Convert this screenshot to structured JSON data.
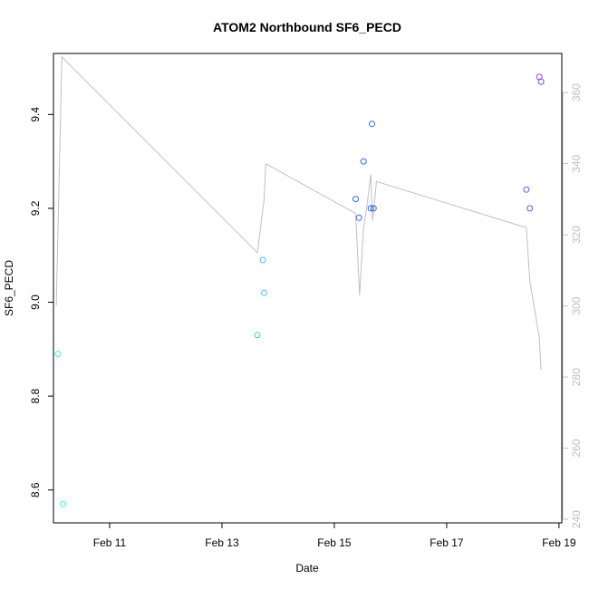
{
  "chart_data": {
    "type": "scatter",
    "title": "ATOM2 Northbound SF6_PECD",
    "xlabel": "Date",
    "ylabel": "SF6_PECD",
    "x_ticks": [
      "Feb 11",
      "Feb 13",
      "Feb 15",
      "Feb 17",
      "Feb 19"
    ],
    "x_tick_days": [
      11,
      13,
      15,
      17,
      19
    ],
    "xlim": [
      10.0,
      19.05
    ],
    "ylim": [
      8.53,
      9.53
    ],
    "y_ticks": [
      8.6,
      8.8,
      9.0,
      9.2,
      9.4
    ],
    "y_tick_labels": [
      "8.6",
      "8.8",
      "9.0",
      "9.2",
      "9.4"
    ],
    "y2_ticks": [
      240,
      260,
      280,
      300,
      320,
      340,
      360
    ],
    "y2_tick_labels": [
      "240",
      "260",
      "280",
      "300",
      "320",
      "340",
      "360"
    ],
    "y2lim": [
      239,
      371
    ],
    "grid": false,
    "points": [
      {
        "x": 10.08,
        "y": 8.89,
        "color": "#33ffcc"
      },
      {
        "x": 10.17,
        "y": 8.57,
        "color": "#33ffcc"
      },
      {
        "x": 13.63,
        "y": 8.93,
        "color": "#33ccee"
      },
      {
        "x": 13.73,
        "y": 9.09,
        "color": "#33ccee"
      },
      {
        "x": 13.75,
        "y": 9.02,
        "color": "#33ccee"
      },
      {
        "x": 15.38,
        "y": 9.22,
        "color": "#3366ee"
      },
      {
        "x": 15.44,
        "y": 9.18,
        "color": "#3366ee"
      },
      {
        "x": 15.52,
        "y": 9.3,
        "color": "#3366ee"
      },
      {
        "x": 15.65,
        "y": 9.2,
        "color": "#3366ee"
      },
      {
        "x": 15.67,
        "y": 9.38,
        "color": "#3366ee"
      },
      {
        "x": 15.7,
        "y": 9.2,
        "color": "#3366ee"
      },
      {
        "x": 18.42,
        "y": 9.24,
        "color": "#8844ee"
      },
      {
        "x": 18.48,
        "y": 9.2,
        "color": "#8844ee"
      },
      {
        "x": 18.65,
        "y": 9.48,
        "color": "#8844ee"
      },
      {
        "x": 18.68,
        "y": 9.47,
        "color": "#8844ee"
      }
    ],
    "line_series": {
      "axis": "right",
      "color": "#c0c0c0",
      "x": [
        10.05,
        10.15,
        13.63,
        13.75,
        13.78,
        15.38,
        15.45,
        15.52,
        15.58,
        15.65,
        15.68,
        15.72,
        15.75,
        18.42,
        18.48,
        18.65,
        18.68
      ],
      "y": [
        300,
        370,
        315,
        330,
        340,
        326,
        303,
        322,
        328,
        337,
        324,
        330,
        335,
        322,
        307,
        291,
        282
      ]
    }
  }
}
